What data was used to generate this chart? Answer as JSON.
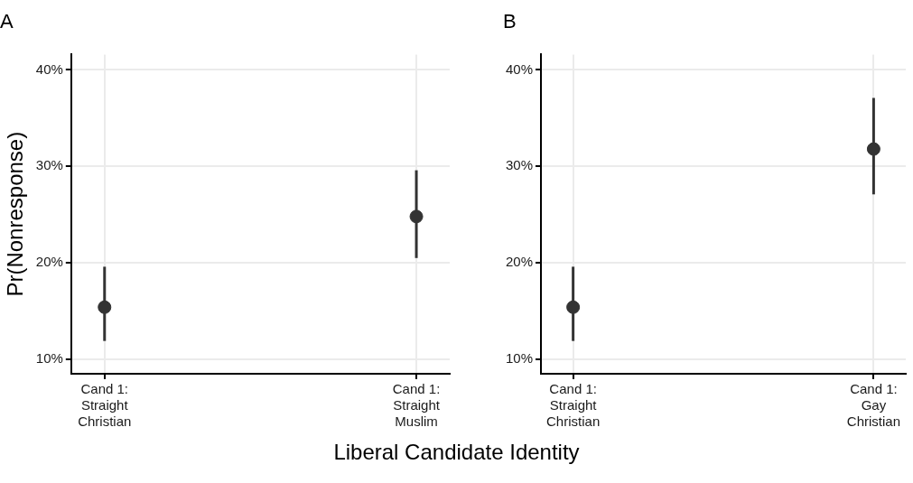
{
  "chart_data": [
    {
      "type": "scatter",
      "title": "A",
      "ylabel": "Pr(Nonresponse)",
      "xlabel": "Liberal Candidate Identity",
      "categories": [
        "Cand 1:\nStraight\nChristian",
        "Cand 1:\nStraight\nMuslim"
      ],
      "series": [
        {
          "color": "#333333",
          "values": [
            15.4,
            24.8
          ],
          "errors": [
            [
              11.9,
              19.6
            ],
            [
              20.5,
              29.6
            ]
          ]
        }
      ],
      "ylim": [
        8.5,
        41.6
      ],
      "yticks": [
        {
          "value": 10,
          "label": "10%"
        },
        {
          "value": 20,
          "label": "20%"
        },
        {
          "value": 30,
          "label": "30%"
        },
        {
          "value": 40,
          "label": "40%"
        }
      ],
      "grid": true,
      "legend": false,
      "marker": "circle"
    },
    {
      "type": "scatter",
      "title": "B",
      "categories": [
        "Cand 1:\nStraight\nChristian",
        "Cand 1:\nGay\nChristian"
      ],
      "series": [
        {
          "color": "#333333",
          "values": [
            15.4,
            31.8
          ],
          "errors": [
            [
              11.9,
              19.6
            ],
            [
              27.1,
              37.1
            ]
          ]
        }
      ],
      "ylim": [
        8.5,
        41.6
      ],
      "yticks": [
        {
          "value": 10,
          "label": "10%"
        },
        {
          "value": 20,
          "label": "20%"
        },
        {
          "value": 30,
          "label": "30%"
        },
        {
          "value": 40,
          "label": "40%"
        }
      ],
      "grid": true,
      "legend": false,
      "marker": "circle"
    }
  ]
}
